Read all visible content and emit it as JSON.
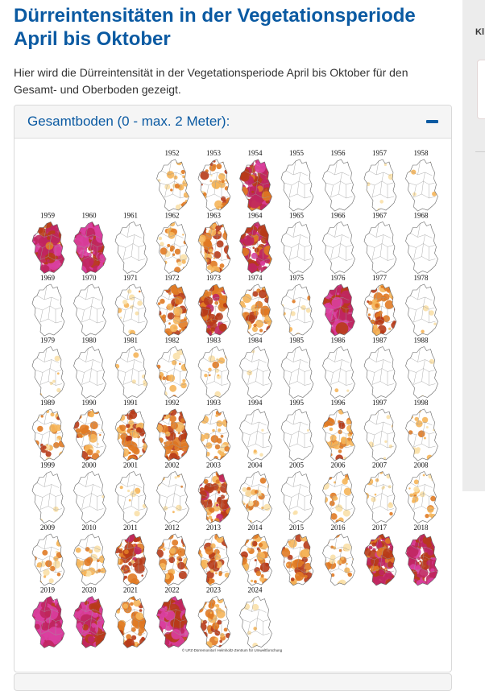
{
  "page": {
    "title": "Dürreintensitäten in der Vegetationsperiode April bis Oktober",
    "intro": "Hier wird die Dürreintensität in der Vegetationsperiode April bis Oktober für den Gesamt- und Oberboden gezeigt."
  },
  "panel": {
    "title": "Gesamtboden (0 - max. 2 Meter):",
    "collapse_icon": "minus-icon"
  },
  "drought_maps": {
    "years": [
      "1952",
      "1953",
      "1954",
      "1955",
      "1956",
      "1957",
      "1958",
      "1959",
      "1960",
      "1961",
      "1962",
      "1963",
      "1964",
      "1965",
      "1966",
      "1967",
      "1968",
      "1969",
      "1970",
      "1971",
      "1972",
      "1973",
      "1974",
      "1975",
      "1976",
      "1977",
      "1978",
      "1979",
      "1980",
      "1981",
      "1982",
      "1983",
      "1984",
      "1985",
      "1986",
      "1987",
      "1988",
      "1989",
      "1990",
      "1991",
      "1992",
      "1993",
      "1994",
      "1995",
      "1996",
      "1997",
      "1998",
      "1999",
      "2000",
      "2001",
      "2002",
      "2003",
      "2004",
      "2005",
      "2006",
      "2007",
      "2008",
      "2009",
      "2010",
      "2011",
      "2012",
      "2013",
      "2014",
      "2015",
      "2016",
      "2017",
      "2018",
      "2019",
      "2020",
      "2021",
      "2022",
      "2023",
      "2024"
    ],
    "intensity": [
      0.3,
      0.4,
      0.7,
      0,
      0,
      0.1,
      0.1,
      0.75,
      0.85,
      0,
      0.3,
      0.45,
      0.7,
      0,
      0,
      0,
      0,
      0,
      0,
      0.2,
      0.5,
      0.6,
      0.5,
      0.2,
      0.85,
      0.5,
      0.15,
      0.1,
      0,
      0.1,
      0.3,
      0.2,
      0.05,
      0,
      0.05,
      0,
      0.05,
      0.35,
      0.4,
      0.5,
      0.55,
      0.35,
      0.1,
      0.05,
      0.4,
      0.15,
      0.25,
      0.05,
      0.05,
      0.15,
      0.15,
      0.55,
      0.3,
      0.05,
      0.3,
      0.2,
      0.3,
      0.3,
      0.3,
      0.55,
      0.45,
      0.45,
      0.45,
      0.45,
      0.35,
      0.7,
      0.8,
      0.95,
      0.85,
      0.5,
      0.8,
      0.45,
      0.15
    ],
    "credit": "© UFZ-Dürremonitor/ Helmholtz-Zentrum für Umweltforschung",
    "colors": [
      "#f9e0a8",
      "#f5b55a",
      "#e07a24",
      "#b73b18",
      "#c02660",
      "#d93f9e"
    ]
  },
  "sidebar": {
    "label": "Kl"
  }
}
